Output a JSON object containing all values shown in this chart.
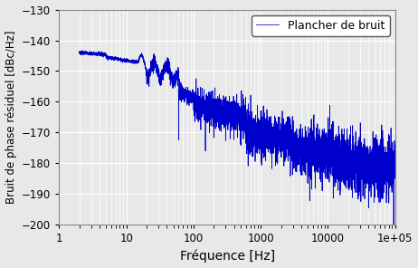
{
  "title": "",
  "xlabel": "Fréquence [Hz]",
  "ylabel": "Bruit de phase résiduel [dBc/Hz]",
  "legend_label": "Plancher de bruit",
  "line_color": "#0000CC",
  "background_color": "#e8e8e8",
  "xlim": [
    1,
    100000
  ],
  "ylim": [
    -200,
    -130
  ],
  "yticks": [
    -200,
    -190,
    -180,
    -170,
    -160,
    -150,
    -140,
    -130
  ],
  "grid_color": "#ffffff",
  "legend_facecolor": "white",
  "legend_edgecolor": "#555555"
}
